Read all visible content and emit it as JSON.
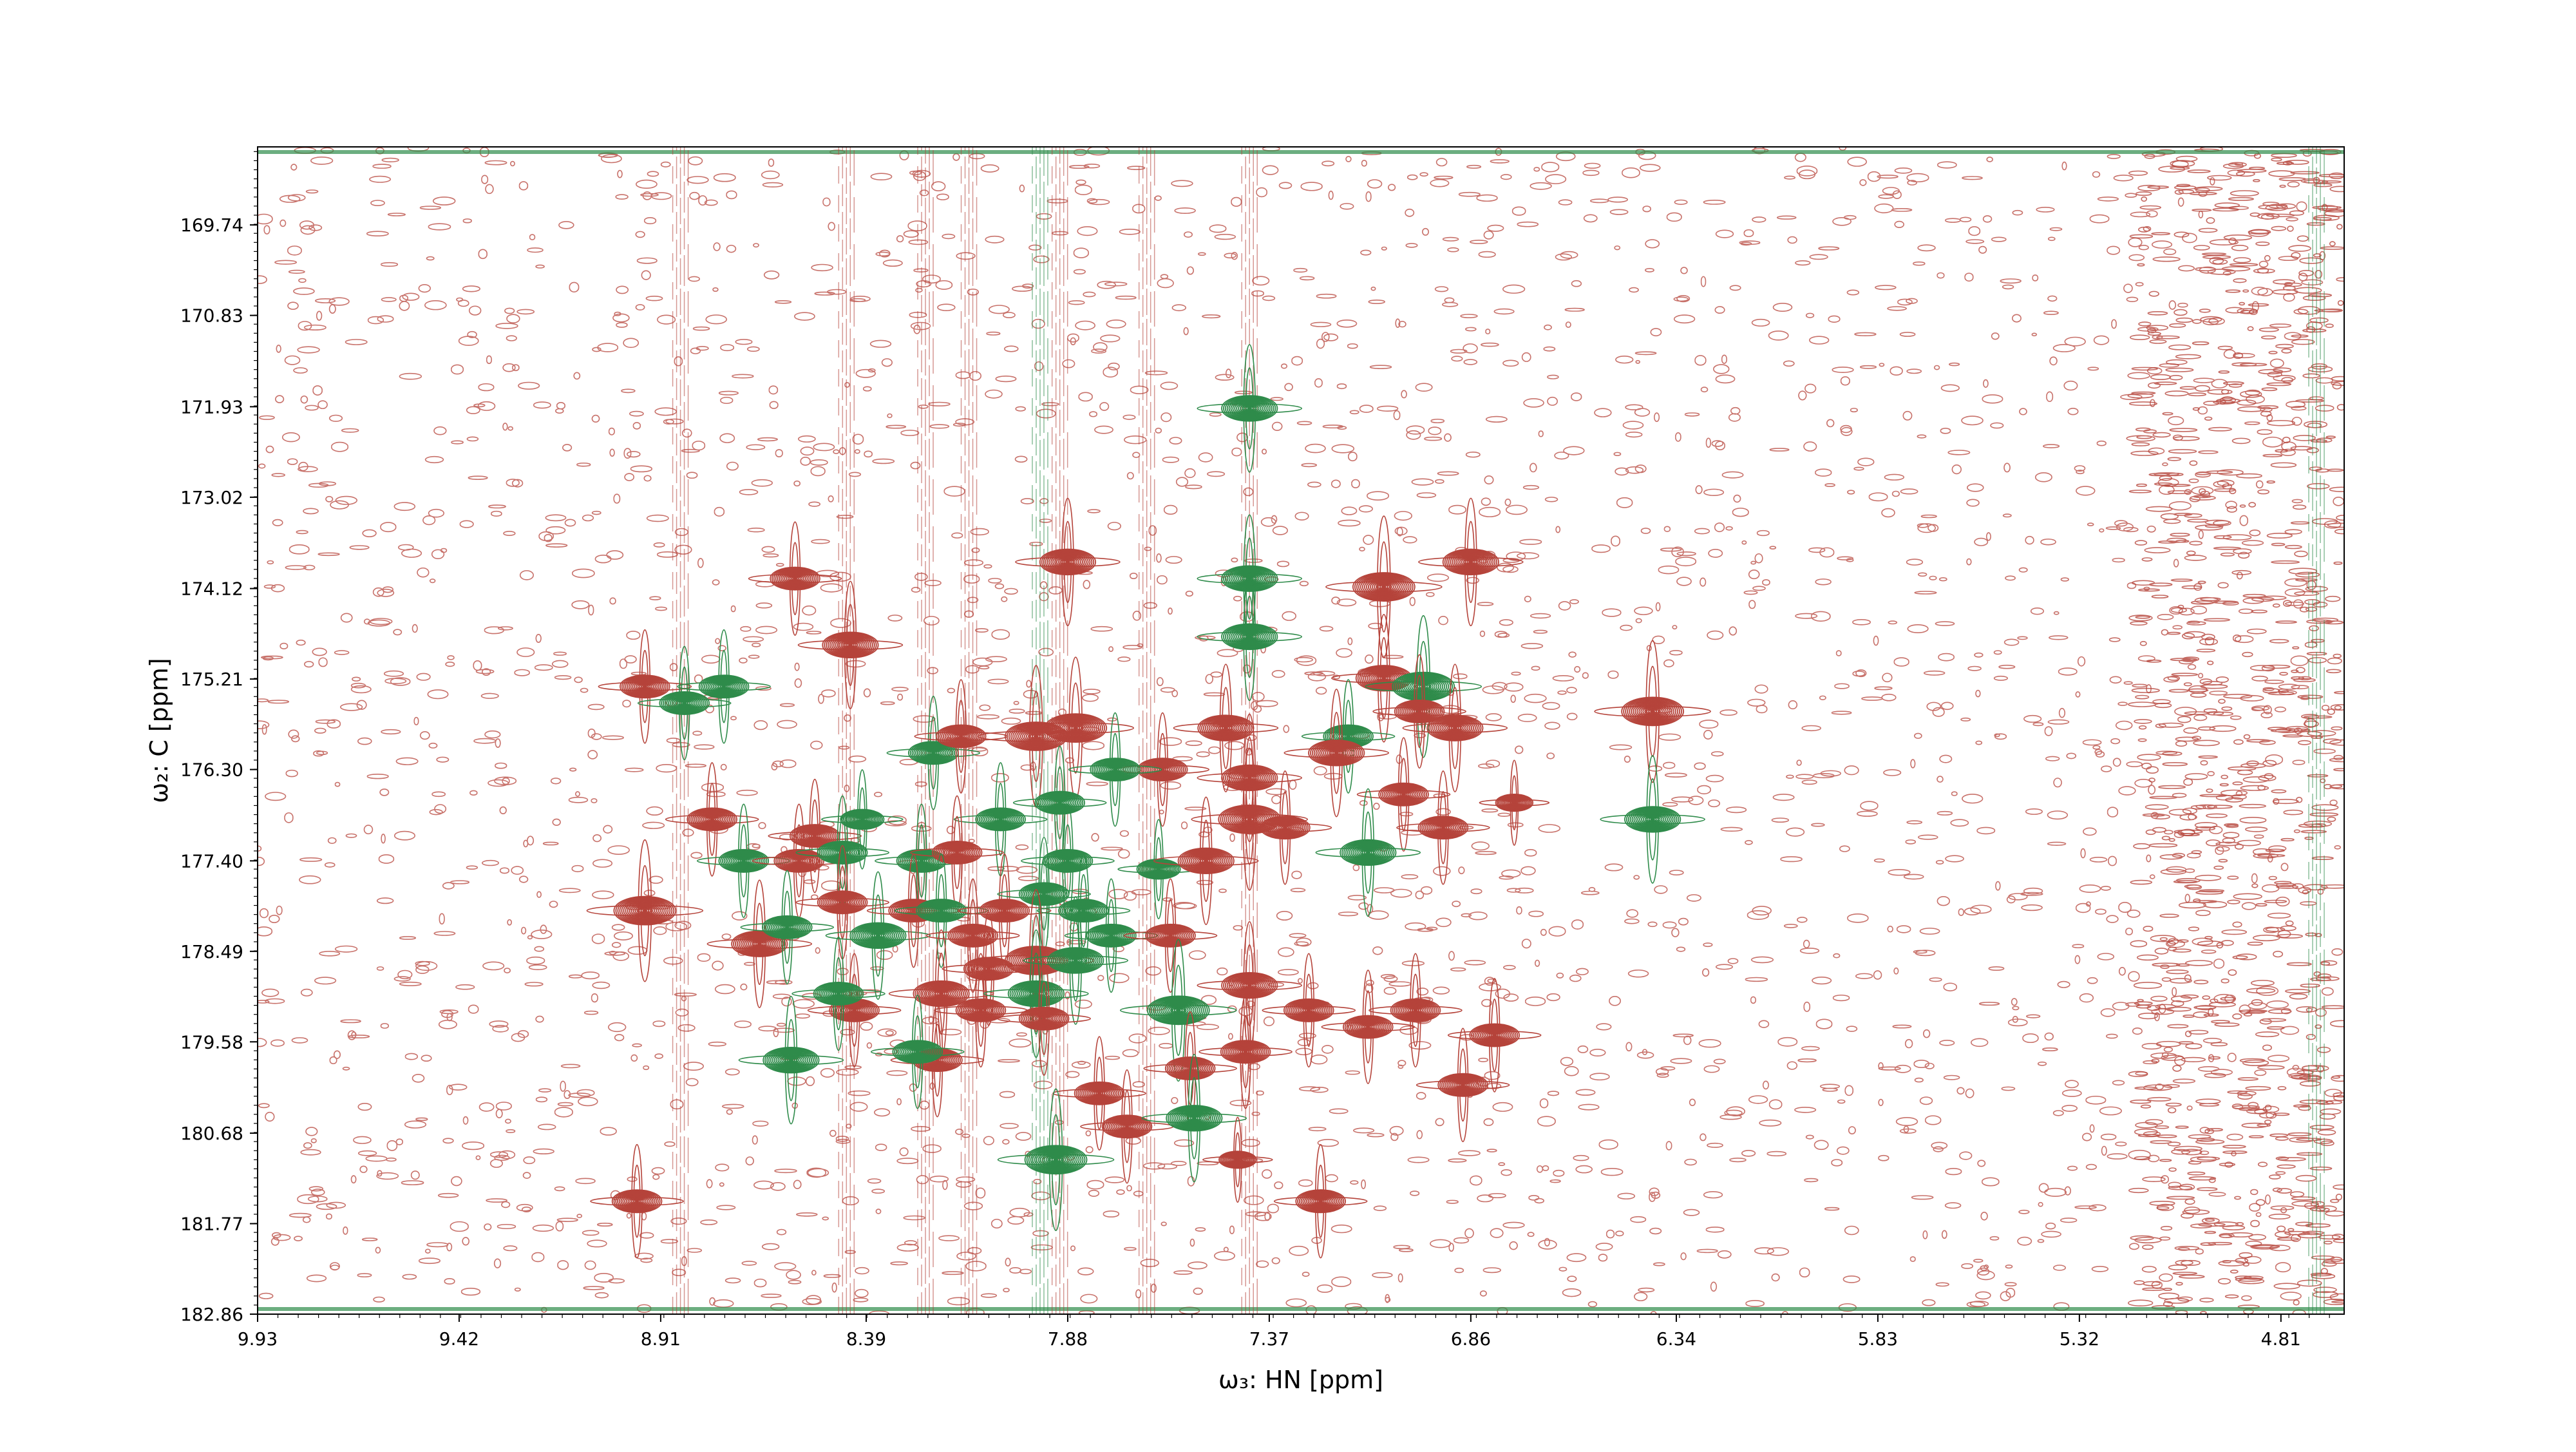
{
  "chart_data": {
    "type": "contour",
    "xlabel": "ω₃: HN [ppm]",
    "ylabel": "ω₂: C [ppm]",
    "xlim": [
      9.93,
      4.65
    ],
    "ylim": [
      182.86,
      168.8
    ],
    "xticks": [
      "9.93",
      "9.42",
      "8.91",
      "8.39",
      "7.88",
      "7.37",
      "6.86",
      "6.34",
      "5.83",
      "5.32",
      "4.81"
    ],
    "yticks": [
      "169.74",
      "170.83",
      "171.93",
      "173.02",
      "174.12",
      "175.21",
      "176.30",
      "177.40",
      "178.49",
      "179.58",
      "180.68",
      "181.77",
      "182.86"
    ],
    "grid": false,
    "legend": "none",
    "colors": {
      "positive": "#b5433a",
      "negative": "#2e8b4a"
    },
    "peaks": [
      {
        "x": 8.57,
        "y": 174.0,
        "sign": "positive",
        "intensity": 0.8
      },
      {
        "x": 8.43,
        "y": 174.8,
        "sign": "positive",
        "intensity": 0.9
      },
      {
        "x": 7.88,
        "y": 173.8,
        "sign": "positive",
        "intensity": 0.9
      },
      {
        "x": 6.86,
        "y": 173.8,
        "sign": "positive",
        "intensity": 0.9
      },
      {
        "x": 7.08,
        "y": 174.1,
        "sign": "positive",
        "intensity": 1.0
      },
      {
        "x": 8.95,
        "y": 175.3,
        "sign": "positive",
        "intensity": 0.8
      },
      {
        "x": 8.85,
        "y": 175.5,
        "sign": "negative",
        "intensity": 0.8
      },
      {
        "x": 8.75,
        "y": 175.3,
        "sign": "negative",
        "intensity": 0.8
      },
      {
        "x": 7.42,
        "y": 174.0,
        "sign": "negative",
        "intensity": 0.9
      },
      {
        "x": 7.42,
        "y": 174.7,
        "sign": "negative",
        "intensity": 0.9
      },
      {
        "x": 7.42,
        "y": 171.95,
        "sign": "negative",
        "intensity": 0.9
      },
      {
        "x": 7.08,
        "y": 175.2,
        "sign": "positive",
        "intensity": 0.9
      },
      {
        "x": 6.98,
        "y": 175.3,
        "sign": "negative",
        "intensity": 1.0
      },
      {
        "x": 6.9,
        "y": 175.8,
        "sign": "positive",
        "intensity": 0.9
      },
      {
        "x": 6.99,
        "y": 175.6,
        "sign": "positive",
        "intensity": 0.8
      },
      {
        "x": 7.17,
        "y": 175.9,
        "sign": "negative",
        "intensity": 0.8
      },
      {
        "x": 7.2,
        "y": 176.1,
        "sign": "positive",
        "intensity": 0.9
      },
      {
        "x": 6.4,
        "y": 175.6,
        "sign": "positive",
        "intensity": 1.0
      },
      {
        "x": 6.4,
        "y": 176.9,
        "sign": "negative",
        "intensity": 0.9
      },
      {
        "x": 8.22,
        "y": 176.1,
        "sign": "negative",
        "intensity": 0.8
      },
      {
        "x": 8.15,
        "y": 175.9,
        "sign": "positive",
        "intensity": 0.8
      },
      {
        "x": 7.96,
        "y": 175.9,
        "sign": "positive",
        "intensity": 1.0
      },
      {
        "x": 7.86,
        "y": 175.8,
        "sign": "positive",
        "intensity": 1.0
      },
      {
        "x": 7.64,
        "y": 176.3,
        "sign": "positive",
        "intensity": 0.8
      },
      {
        "x": 7.48,
        "y": 175.8,
        "sign": "positive",
        "intensity": 0.9
      },
      {
        "x": 7.42,
        "y": 176.4,
        "sign": "positive",
        "intensity": 0.9
      },
      {
        "x": 7.76,
        "y": 176.3,
        "sign": "negative",
        "intensity": 0.8
      },
      {
        "x": 7.9,
        "y": 176.7,
        "sign": "negative",
        "intensity": 0.8
      },
      {
        "x": 7.03,
        "y": 176.6,
        "sign": "positive",
        "intensity": 0.8
      },
      {
        "x": 6.75,
        "y": 176.7,
        "sign": "positive",
        "intensity": 0.6
      },
      {
        "x": 6.93,
        "y": 177.0,
        "sign": "positive",
        "intensity": 0.8
      },
      {
        "x": 7.42,
        "y": 176.9,
        "sign": "positive",
        "intensity": 1.0
      },
      {
        "x": 7.33,
        "y": 177.0,
        "sign": "positive",
        "intensity": 0.8
      },
      {
        "x": 7.12,
        "y": 177.3,
        "sign": "negative",
        "intensity": 0.9
      },
      {
        "x": 8.78,
        "y": 176.9,
        "sign": "positive",
        "intensity": 0.8
      },
      {
        "x": 8.52,
        "y": 177.1,
        "sign": "positive",
        "intensity": 0.8
      },
      {
        "x": 8.4,
        "y": 176.9,
        "sign": "negative",
        "intensity": 0.7
      },
      {
        "x": 8.05,
        "y": 176.9,
        "sign": "negative",
        "intensity": 0.8
      },
      {
        "x": 8.7,
        "y": 177.4,
        "sign": "negative",
        "intensity": 0.8
      },
      {
        "x": 8.56,
        "y": 177.4,
        "sign": "positive",
        "intensity": 0.8
      },
      {
        "x": 8.45,
        "y": 177.3,
        "sign": "negative",
        "intensity": 0.8
      },
      {
        "x": 8.25,
        "y": 177.4,
        "sign": "negative",
        "intensity": 0.8
      },
      {
        "x": 8.16,
        "y": 177.3,
        "sign": "positive",
        "intensity": 0.8
      },
      {
        "x": 7.88,
        "y": 177.4,
        "sign": "negative",
        "intensity": 0.8
      },
      {
        "x": 7.65,
        "y": 177.5,
        "sign": "negative",
        "intensity": 0.7
      },
      {
        "x": 7.53,
        "y": 177.4,
        "sign": "positive",
        "intensity": 0.9
      },
      {
        "x": 8.95,
        "y": 178.0,
        "sign": "positive",
        "intensity": 1.0
      },
      {
        "x": 8.66,
        "y": 178.4,
        "sign": "positive",
        "intensity": 0.9
      },
      {
        "x": 8.59,
        "y": 178.2,
        "sign": "negative",
        "intensity": 0.8
      },
      {
        "x": 8.45,
        "y": 177.9,
        "sign": "positive",
        "intensity": 0.8
      },
      {
        "x": 8.36,
        "y": 178.3,
        "sign": "negative",
        "intensity": 0.9
      },
      {
        "x": 8.27,
        "y": 178.0,
        "sign": "positive",
        "intensity": 0.8
      },
      {
        "x": 8.2,
        "y": 178.0,
        "sign": "negative",
        "intensity": 0.8
      },
      {
        "x": 8.12,
        "y": 178.3,
        "sign": "positive",
        "intensity": 0.8
      },
      {
        "x": 8.04,
        "y": 178.0,
        "sign": "positive",
        "intensity": 0.8
      },
      {
        "x": 7.94,
        "y": 177.8,
        "sign": "negative",
        "intensity": 0.8
      },
      {
        "x": 7.84,
        "y": 178.0,
        "sign": "negative",
        "intensity": 0.8
      },
      {
        "x": 7.77,
        "y": 178.3,
        "sign": "negative",
        "intensity": 0.8
      },
      {
        "x": 7.62,
        "y": 178.3,
        "sign": "positive",
        "intensity": 0.8
      },
      {
        "x": 7.96,
        "y": 178.6,
        "sign": "positive",
        "intensity": 1.0
      },
      {
        "x": 7.86,
        "y": 178.6,
        "sign": "negative",
        "intensity": 0.9
      },
      {
        "x": 8.08,
        "y": 178.7,
        "sign": "positive",
        "intensity": 0.8
      },
      {
        "x": 8.42,
        "y": 179.2,
        "sign": "positive",
        "intensity": 0.8
      },
      {
        "x": 8.46,
        "y": 179.0,
        "sign": "negative",
        "intensity": 0.8
      },
      {
        "x": 8.2,
        "y": 179.0,
        "sign": "positive",
        "intensity": 0.9
      },
      {
        "x": 8.1,
        "y": 179.2,
        "sign": "positive",
        "intensity": 0.8
      },
      {
        "x": 7.96,
        "y": 179.0,
        "sign": "negative",
        "intensity": 0.9
      },
      {
        "x": 7.94,
        "y": 179.3,
        "sign": "positive",
        "intensity": 0.8
      },
      {
        "x": 7.6,
        "y": 179.2,
        "sign": "negative",
        "intensity": 1.0
      },
      {
        "x": 7.42,
        "y": 178.9,
        "sign": "positive",
        "intensity": 0.9
      },
      {
        "x": 7.27,
        "y": 179.2,
        "sign": "positive",
        "intensity": 0.8
      },
      {
        "x": 7.12,
        "y": 179.4,
        "sign": "positive",
        "intensity": 0.8
      },
      {
        "x": 7.0,
        "y": 179.2,
        "sign": "positive",
        "intensity": 0.8
      },
      {
        "x": 6.8,
        "y": 179.5,
        "sign": "positive",
        "intensity": 0.8
      },
      {
        "x": 8.58,
        "y": 179.8,
        "sign": "negative",
        "intensity": 0.9
      },
      {
        "x": 8.21,
        "y": 179.8,
        "sign": "positive",
        "intensity": 0.8
      },
      {
        "x": 8.26,
        "y": 179.7,
        "sign": "negative",
        "intensity": 0.8
      },
      {
        "x": 7.57,
        "y": 179.9,
        "sign": "positive",
        "intensity": 0.8
      },
      {
        "x": 7.43,
        "y": 179.7,
        "sign": "positive",
        "intensity": 0.8
      },
      {
        "x": 6.88,
        "y": 180.1,
        "sign": "positive",
        "intensity": 0.8
      },
      {
        "x": 7.8,
        "y": 180.2,
        "sign": "positive",
        "intensity": 0.8
      },
      {
        "x": 7.73,
        "y": 180.6,
        "sign": "positive",
        "intensity": 0.8
      },
      {
        "x": 7.56,
        "y": 180.5,
        "sign": "negative",
        "intensity": 0.9
      },
      {
        "x": 7.91,
        "y": 181.0,
        "sign": "negative",
        "intensity": 1.0
      },
      {
        "x": 7.45,
        "y": 181.0,
        "sign": "positive",
        "intensity": 0.6
      },
      {
        "x": 8.97,
        "y": 181.5,
        "sign": "positive",
        "intensity": 0.8
      },
      {
        "x": 7.24,
        "y": 181.5,
        "sign": "positive",
        "intensity": 0.8
      }
    ],
    "ridges": [
      {
        "x": 7.42,
        "y_from": 168.8,
        "y_to": 182.86,
        "sign": "positive"
      },
      {
        "x": 8.24,
        "y_from": 168.8,
        "y_to": 182.86,
        "sign": "positive"
      },
      {
        "x": 8.13,
        "y_from": 168.8,
        "y_to": 182.86,
        "sign": "positive"
      },
      {
        "x": 7.95,
        "y_from": 168.8,
        "y_to": 182.86,
        "sign": "negative"
      },
      {
        "x": 7.9,
        "y_from": 168.8,
        "y_to": 182.86,
        "sign": "positive"
      },
      {
        "x": 7.68,
        "y_from": 168.8,
        "y_to": 182.86,
        "sign": "positive"
      },
      {
        "x": 8.44,
        "y_from": 168.8,
        "y_to": 182.86,
        "sign": "positive"
      },
      {
        "x": 8.86,
        "y_from": 168.8,
        "y_to": 182.86,
        "sign": "positive"
      },
      {
        "x": 4.72,
        "y_from": 168.8,
        "y_to": 182.86,
        "sign": "negative"
      }
    ]
  }
}
